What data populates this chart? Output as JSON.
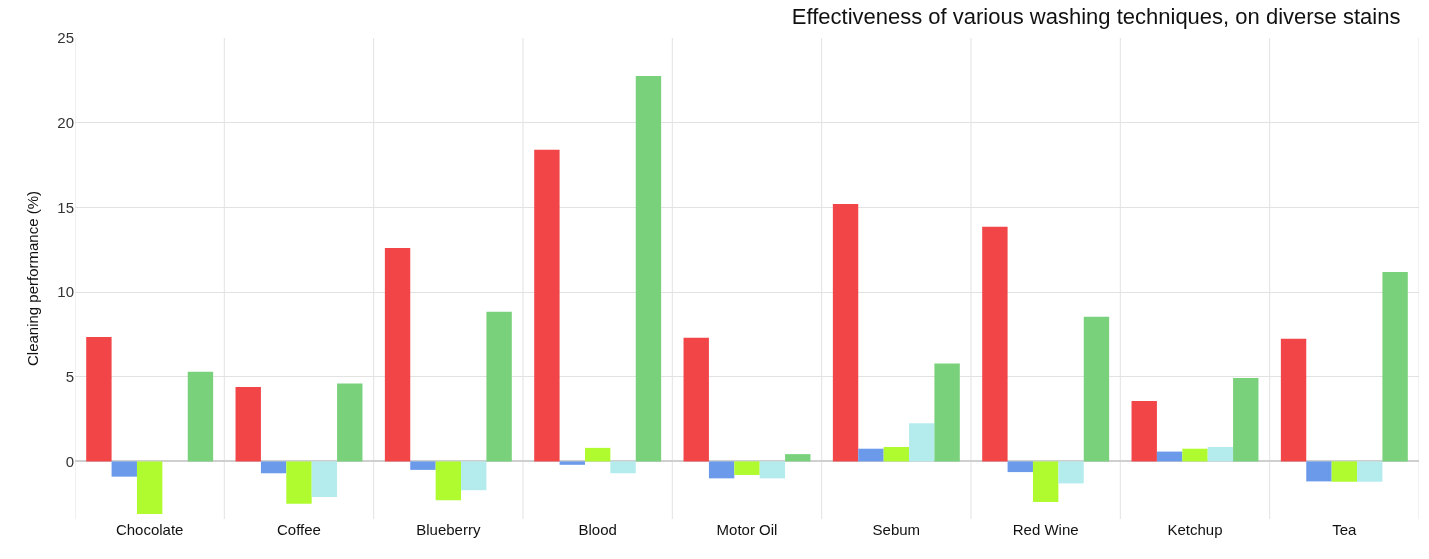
{
  "chart_data": {
    "type": "bar",
    "title": "Effectiveness of various washing techniques, on diverse stains",
    "ylabel": "Cleaning performance (%)",
    "categories": [
      "Chocolate",
      "Coffee",
      "Blueberry",
      "Blood",
      "Motor Oil",
      "Sebum",
      "Red Wine",
      "Ketchup",
      "Tea"
    ],
    "series": [
      {
        "color": "#f24548",
        "values": [
          7.35,
          4.4,
          12.6,
          18.4,
          7.3,
          15.2,
          13.85,
          3.57,
          7.24
        ]
      },
      {
        "color": "#6b9aeb",
        "values": [
          -0.9,
          -0.7,
          -0.5,
          -0.2,
          -1.0,
          0.75,
          -0.63,
          0.58,
          -1.18
        ]
      },
      {
        "color": "#b0fb2f",
        "values": [
          -3.1,
          -2.5,
          -2.3,
          0.8,
          -0.8,
          0.85,
          -2.4,
          0.75,
          -1.2
        ]
      },
      {
        "color": "#b4ecee",
        "values": [
          0,
          -2.1,
          -1.7,
          -0.7,
          -1.0,
          2.26,
          -1.3,
          0.85,
          -1.2
        ]
      },
      {
        "color": "#79d27b",
        "values": [
          5.3,
          4.6,
          8.83,
          22.75,
          0.43,
          5.78,
          8.54,
          4.92,
          11.19
        ]
      }
    ],
    "ylim": [
      -3.4,
      25
    ],
    "yticks": [
      0,
      5,
      10,
      15,
      20,
      25
    ],
    "grid": true
  }
}
